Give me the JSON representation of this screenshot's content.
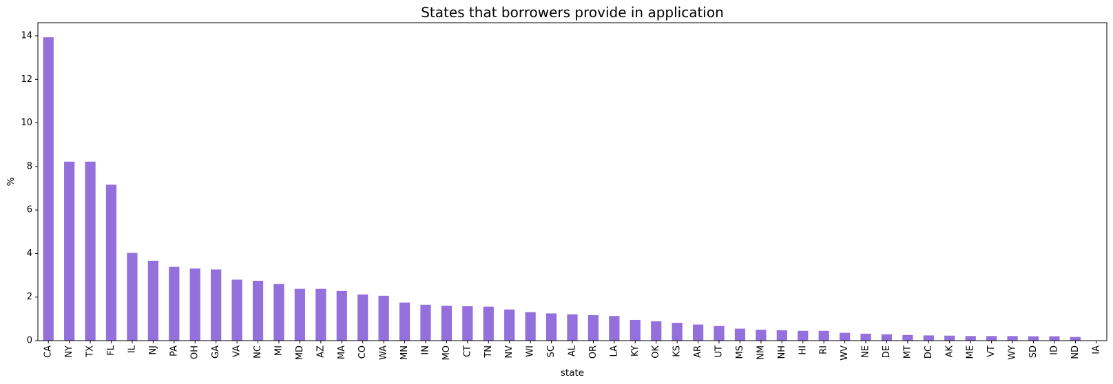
{
  "chart_data": {
    "type": "bar",
    "title": "States that borrowers provide in application",
    "xlabel": "state",
    "ylabel": "%",
    "ylim": [
      0,
      14.6
    ],
    "yticks": [
      0,
      2,
      4,
      6,
      8,
      10,
      12,
      14
    ],
    "grid": false,
    "bar_color": "#9370DB",
    "categories": [
      "CA",
      "NY",
      "TX",
      "FL",
      "IL",
      "NJ",
      "PA",
      "OH",
      "GA",
      "VA",
      "NC",
      "MI",
      "MD",
      "AZ",
      "MA",
      "CO",
      "WA",
      "MN",
      "IN",
      "MO",
      "CT",
      "TN",
      "NV",
      "WI",
      "SC",
      "AL",
      "OR",
      "LA",
      "KY",
      "OK",
      "KS",
      "AR",
      "UT",
      "MS",
      "NM",
      "NH",
      "HI",
      "RI",
      "WV",
      "NE",
      "DE",
      "MT",
      "DC",
      "AK",
      "ME",
      "VT",
      "WY",
      "SD",
      "ID",
      "ND",
      "IA"
    ],
    "values": [
      13.93,
      8.22,
      8.22,
      7.16,
      4.03,
      3.67,
      3.39,
      3.31,
      3.27,
      2.8,
      2.75,
      2.6,
      2.38,
      2.38,
      2.28,
      2.12,
      2.06,
      1.75,
      1.65,
      1.6,
      1.58,
      1.56,
      1.43,
      1.31,
      1.25,
      1.21,
      1.17,
      1.13,
      0.95,
      0.89,
      0.82,
      0.74,
      0.67,
      0.55,
      0.5,
      0.48,
      0.45,
      0.45,
      0.36,
      0.32,
      0.29,
      0.26,
      0.24,
      0.23,
      0.21,
      0.21,
      0.21,
      0.2,
      0.2,
      0.17,
      0.0
    ]
  }
}
